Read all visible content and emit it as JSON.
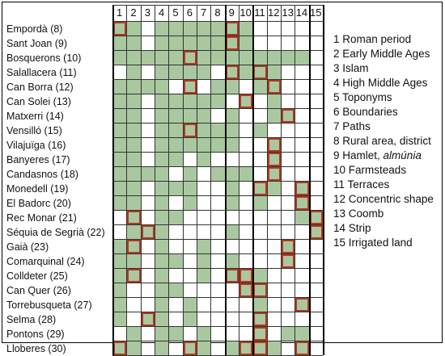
{
  "columns": [
    "1",
    "2",
    "3",
    "4",
    "5",
    "6",
    "7",
    "8",
    "9",
    "10",
    "11",
    "12",
    "13",
    "14",
    "15"
  ],
  "legend": [
    {
      "num": "1",
      "text": "Roman period"
    },
    {
      "num": "2",
      "text": "Early Middle Ages"
    },
    {
      "num": "3",
      "text": "Islam"
    },
    {
      "num": "4",
      "text": "High Middle Ages"
    },
    {
      "num": "5",
      "text": "Toponyms"
    },
    {
      "num": "6",
      "text": "Boundaries"
    },
    {
      "num": "7",
      "text": "Paths"
    },
    {
      "num": "8",
      "text": "Rural area, district"
    },
    {
      "num": "9",
      "text": "Hamlet, ",
      "italic": "almúnia"
    },
    {
      "num": "10",
      "text": "Farmsteads"
    },
    {
      "num": "11",
      "text": "Terraces"
    },
    {
      "num": "12",
      "text": "Concentric shape"
    },
    {
      "num": "13",
      "text": "Coomb"
    },
    {
      "num": "14",
      "text": "Strip"
    },
    {
      "num": "15",
      "text": "Irrigated land"
    }
  ],
  "colors": {
    "green": "#a9c8a0",
    "red_border": "#b5361f",
    "grid": "#333333"
  },
  "rows": [
    {
      "name": "Empordà (8)",
      "cells": [
        2,
        1,
        0,
        1,
        1,
        1,
        1,
        1,
        2,
        1,
        0,
        0,
        0,
        0,
        0
      ]
    },
    {
      "name": "Sant Joan (9)",
      "cells": [
        1,
        1,
        0,
        1,
        1,
        1,
        1,
        1,
        2,
        1,
        0,
        0,
        0,
        0,
        0
      ]
    },
    {
      "name": "Bosquerons (10)",
      "cells": [
        1,
        1,
        1,
        1,
        1,
        2,
        1,
        1,
        1,
        1,
        1,
        1,
        1,
        1,
        0
      ]
    },
    {
      "name": "Salallacera (11)",
      "cells": [
        0,
        1,
        0,
        1,
        1,
        1,
        1,
        0,
        2,
        1,
        2,
        1,
        0,
        0,
        0
      ]
    },
    {
      "name": "Can Borra (12)",
      "cells": [
        1,
        1,
        1,
        1,
        0,
        2,
        0,
        1,
        1,
        0,
        1,
        2,
        0,
        0,
        0
      ]
    },
    {
      "name": "Can Solei (13)",
      "cells": [
        1,
        1,
        0,
        1,
        1,
        1,
        1,
        1,
        0,
        2,
        0,
        1,
        0,
        0,
        0
      ]
    },
    {
      "name": "Matxerri (14)",
      "cells": [
        1,
        1,
        0,
        1,
        1,
        1,
        1,
        0,
        1,
        0,
        0,
        1,
        2,
        0,
        0
      ]
    },
    {
      "name": "Vensilló (15)",
      "cells": [
        1,
        1,
        0,
        1,
        1,
        2,
        1,
        1,
        1,
        0,
        1,
        0,
        0,
        0,
        0
      ]
    },
    {
      "name": "Vilajuïga (16)",
      "cells": [
        1,
        1,
        0,
        1,
        1,
        1,
        1,
        1,
        1,
        0,
        0,
        2,
        0,
        0,
        0
      ]
    },
    {
      "name": "Banyeres (17)",
      "cells": [
        1,
        1,
        0,
        1,
        1,
        0,
        1,
        0,
        0,
        0,
        0,
        2,
        0,
        0,
        0
      ]
    },
    {
      "name": "Candasnos (18)",
      "cells": [
        1,
        1,
        1,
        1,
        0,
        1,
        0,
        1,
        1,
        1,
        0,
        2,
        0,
        0,
        0
      ]
    },
    {
      "name": "Monedell (19)",
      "cells": [
        1,
        1,
        0,
        1,
        1,
        1,
        0,
        0,
        1,
        0,
        2,
        1,
        0,
        2,
        0
      ]
    },
    {
      "name": "El Badorc (20)",
      "cells": [
        1,
        1,
        0,
        1,
        0,
        1,
        0,
        0,
        1,
        0,
        1,
        0,
        0,
        2,
        0
      ]
    },
    {
      "name": "Rec Monar (21)",
      "cells": [
        0,
        2,
        0,
        1,
        1,
        0,
        0,
        0,
        0,
        0,
        0,
        0,
        0,
        1,
        2
      ]
    },
    {
      "name": "Séquia de Segrià (22)",
      "cells": [
        0,
        1,
        2,
        1,
        0,
        0,
        0,
        0,
        1,
        0,
        0,
        0,
        0,
        0,
        2
      ]
    },
    {
      "name": "Gaià (23)",
      "cells": [
        1,
        2,
        0,
        1,
        0,
        0,
        1,
        0,
        0,
        0,
        0,
        0,
        2,
        0,
        0
      ]
    },
    {
      "name": "Comarquinal (24)",
      "cells": [
        1,
        1,
        0,
        1,
        1,
        0,
        1,
        0,
        1,
        0,
        0,
        0,
        2,
        0,
        0
      ]
    },
    {
      "name": "Colldeter (25)",
      "cells": [
        1,
        2,
        0,
        1,
        0,
        0,
        1,
        0,
        2,
        2,
        1,
        0,
        0,
        0,
        0
      ]
    },
    {
      "name": "Can Quer (26)",
      "cells": [
        1,
        0,
        0,
        1,
        1,
        0,
        0,
        0,
        0,
        2,
        2,
        0,
        0,
        0,
        0
      ]
    },
    {
      "name": "Torrebusqueta (27)",
      "cells": [
        1,
        0,
        0,
        1,
        0,
        1,
        0,
        0,
        0,
        0,
        1,
        0,
        0,
        2,
        0
      ]
    },
    {
      "name": "Selma (28)",
      "cells": [
        1,
        0,
        2,
        1,
        0,
        1,
        0,
        0,
        0,
        0,
        2,
        0,
        0,
        0,
        0
      ]
    },
    {
      "name": "Pontons (29)",
      "cells": [
        0,
        1,
        0,
        1,
        1,
        0,
        1,
        0,
        0,
        0,
        2,
        0,
        1,
        1,
        0
      ]
    },
    {
      "name": "Lloberes (30)",
      "cells": [
        2,
        1,
        0,
        1,
        0,
        2,
        1,
        0,
        1,
        2,
        2,
        1,
        0,
        2,
        0
      ]
    }
  ]
}
